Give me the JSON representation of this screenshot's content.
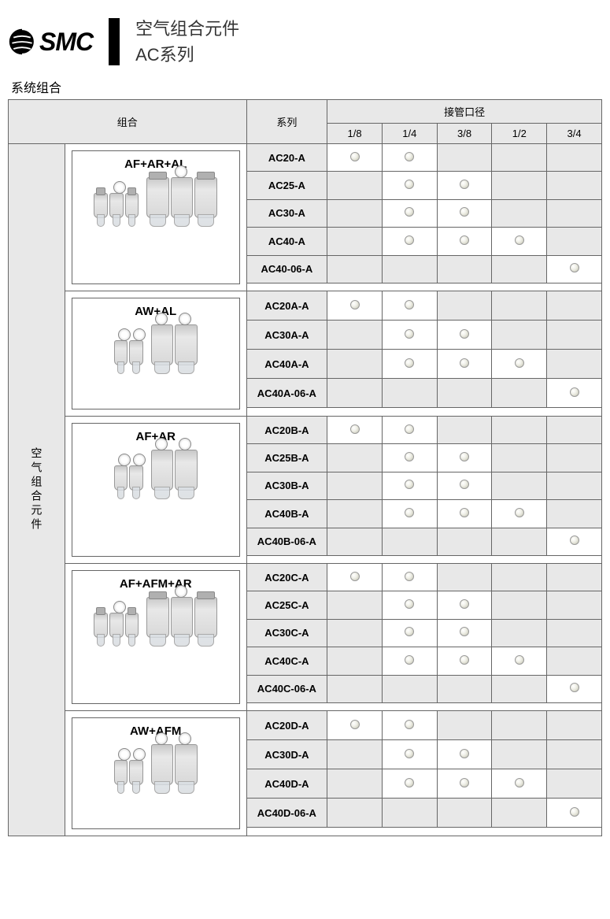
{
  "header": {
    "logo_text": "SMC",
    "title_main": "空气组合元件",
    "title_sub": "AC系列"
  },
  "section_label": "系统组合",
  "columns": {
    "combo": "组合",
    "series": "系列",
    "port_header": "接管口径",
    "ports": [
      "1/8",
      "1/4",
      "3/8",
      "1/2",
      "3/4"
    ]
  },
  "vertical_label": "空气组合元件",
  "groups": [
    {
      "title": "AF+AR+AL",
      "parts_small": 3,
      "parts_large": 3,
      "rows": [
        {
          "series": "AC20-A",
          "dots": [
            true,
            true,
            false,
            false,
            false
          ]
        },
        {
          "series": "AC25-A",
          "dots": [
            false,
            true,
            true,
            false,
            false
          ]
        },
        {
          "series": "AC30-A",
          "dots": [
            false,
            true,
            true,
            false,
            false
          ]
        },
        {
          "series": "AC40-A",
          "dots": [
            false,
            true,
            true,
            true,
            false
          ]
        },
        {
          "series": "AC40-06-A",
          "dots": [
            false,
            false,
            false,
            false,
            true
          ]
        }
      ]
    },
    {
      "title": "AW+AL",
      "parts_small": 2,
      "parts_large": 2,
      "rows": [
        {
          "series": "AC20A-A",
          "dots": [
            true,
            true,
            false,
            false,
            false
          ]
        },
        {
          "series": "AC30A-A",
          "dots": [
            false,
            true,
            true,
            false,
            false
          ]
        },
        {
          "series": "AC40A-A",
          "dots": [
            false,
            true,
            true,
            true,
            false
          ]
        },
        {
          "series": "AC40A-06-A",
          "dots": [
            false,
            false,
            false,
            false,
            true
          ]
        }
      ]
    },
    {
      "title": "AF+AR",
      "parts_small": 2,
      "parts_large": 2,
      "rows": [
        {
          "series": "AC20B-A",
          "dots": [
            true,
            true,
            false,
            false,
            false
          ]
        },
        {
          "series": "AC25B-A",
          "dots": [
            false,
            true,
            true,
            false,
            false
          ]
        },
        {
          "series": "AC30B-A",
          "dots": [
            false,
            true,
            true,
            false,
            false
          ]
        },
        {
          "series": "AC40B-A",
          "dots": [
            false,
            true,
            true,
            true,
            false
          ]
        },
        {
          "series": "AC40B-06-A",
          "dots": [
            false,
            false,
            false,
            false,
            true
          ]
        }
      ]
    },
    {
      "title": "AF+AFM+AR",
      "parts_small": 3,
      "parts_large": 3,
      "rows": [
        {
          "series": "AC20C-A",
          "dots": [
            true,
            true,
            false,
            false,
            false
          ]
        },
        {
          "series": "AC25C-A",
          "dots": [
            false,
            true,
            true,
            false,
            false
          ]
        },
        {
          "series": "AC30C-A",
          "dots": [
            false,
            true,
            true,
            false,
            false
          ]
        },
        {
          "series": "AC40C-A",
          "dots": [
            false,
            true,
            true,
            true,
            false
          ]
        },
        {
          "series": "AC40C-06-A",
          "dots": [
            false,
            false,
            false,
            false,
            true
          ]
        }
      ]
    },
    {
      "title": "AW+AFM",
      "parts_small": 2,
      "parts_large": 2,
      "rows": [
        {
          "series": "AC20D-A",
          "dots": [
            true,
            true,
            false,
            false,
            false
          ]
        },
        {
          "series": "AC30D-A",
          "dots": [
            false,
            true,
            true,
            false,
            false
          ]
        },
        {
          "series": "AC40D-A",
          "dots": [
            false,
            true,
            true,
            true,
            false
          ]
        },
        {
          "series": "AC40D-06-A",
          "dots": [
            false,
            false,
            false,
            false,
            true
          ]
        }
      ]
    }
  ],
  "styling": {
    "header_bg": "#e8e8e8",
    "border_color": "#666666",
    "dot_gradient": [
      "#ffffff",
      "#f0f0e8",
      "#d0d0c0",
      "#b0b0a0"
    ],
    "font_family": "Arial",
    "title_fontsize": 22,
    "body_fontsize": 13
  }
}
